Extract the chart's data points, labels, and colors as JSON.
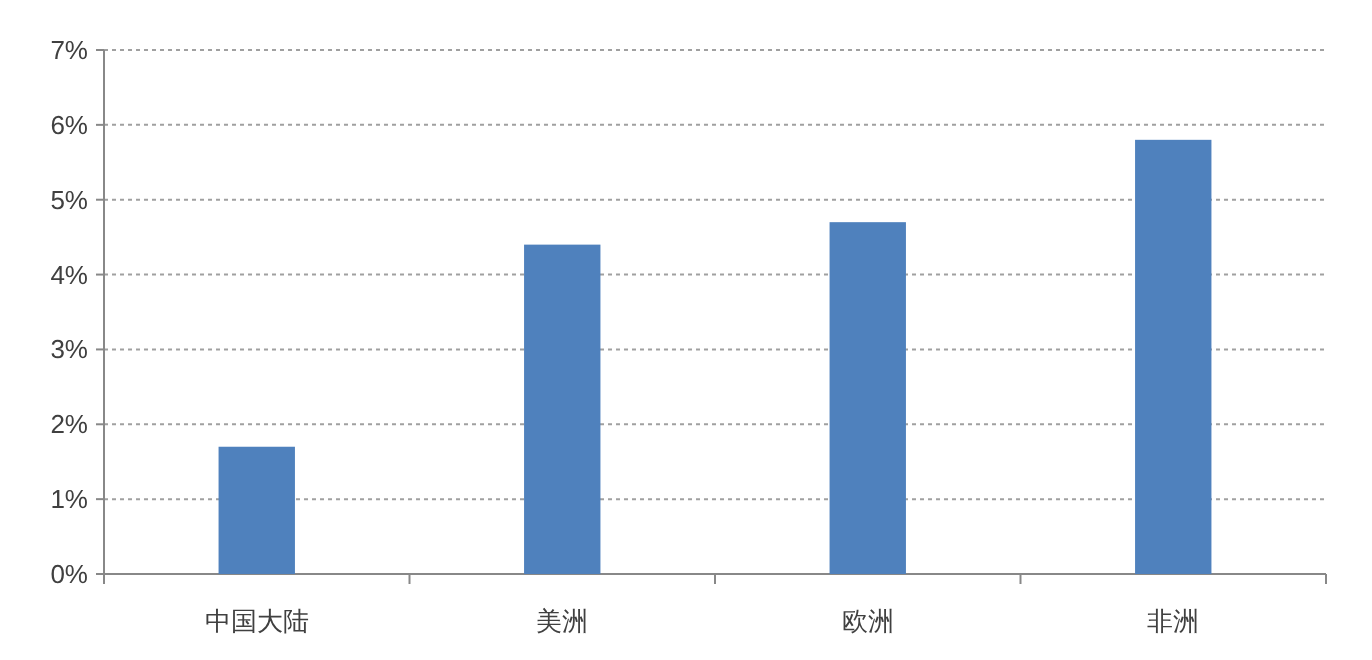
{
  "chart_data": {
    "type": "bar",
    "categories": [
      "中国大陆",
      "美洲",
      "欧洲",
      "非洲"
    ],
    "values": [
      1.7,
      4.4,
      4.7,
      5.8
    ],
    "color": "#4f81bd",
    "ylim": [
      0,
      7
    ],
    "yticks": [
      {
        "value": 0,
        "label": "0%"
      },
      {
        "value": 1,
        "label": "1%"
      },
      {
        "value": 2,
        "label": "2%"
      },
      {
        "value": 3,
        "label": "3%"
      },
      {
        "value": 4,
        "label": "4%"
      },
      {
        "value": 5,
        "label": "5%"
      },
      {
        "value": 6,
        "label": "6%"
      },
      {
        "value": 7,
        "label": "7%"
      }
    ],
    "grid": "y"
  }
}
